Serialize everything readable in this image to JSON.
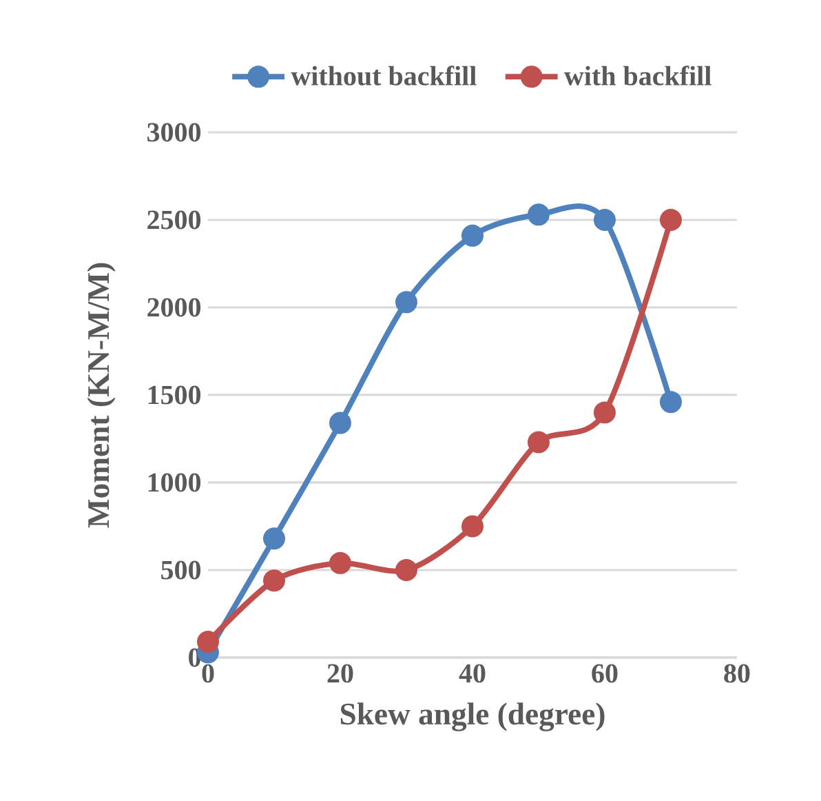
{
  "chart_data": {
    "type": "line",
    "xlabel": "Skew angle (degree)",
    "ylabel": "Moment (KN-M/M)",
    "x": [
      0,
      10,
      20,
      30,
      40,
      50,
      60,
      70
    ],
    "series": [
      {
        "name": "without backfill",
        "color": "#4f81bd",
        "values": [
          30,
          680,
          1340,
          2030,
          2410,
          2530,
          2500,
          1460
        ]
      },
      {
        "name": "with backfill",
        "color": "#c0504d",
        "values": [
          90,
          440,
          540,
          500,
          750,
          1230,
          1400,
          2500
        ]
      }
    ],
    "xlim": [
      0,
      80
    ],
    "xticks": [
      0,
      20,
      40,
      60,
      80
    ],
    "ylim": [
      0,
      3000
    ],
    "yticks": [
      0,
      500,
      1000,
      1500,
      2000,
      2500,
      3000
    ],
    "grid": "y",
    "legend": "top",
    "marker": "circle",
    "line_style": "solid"
  }
}
